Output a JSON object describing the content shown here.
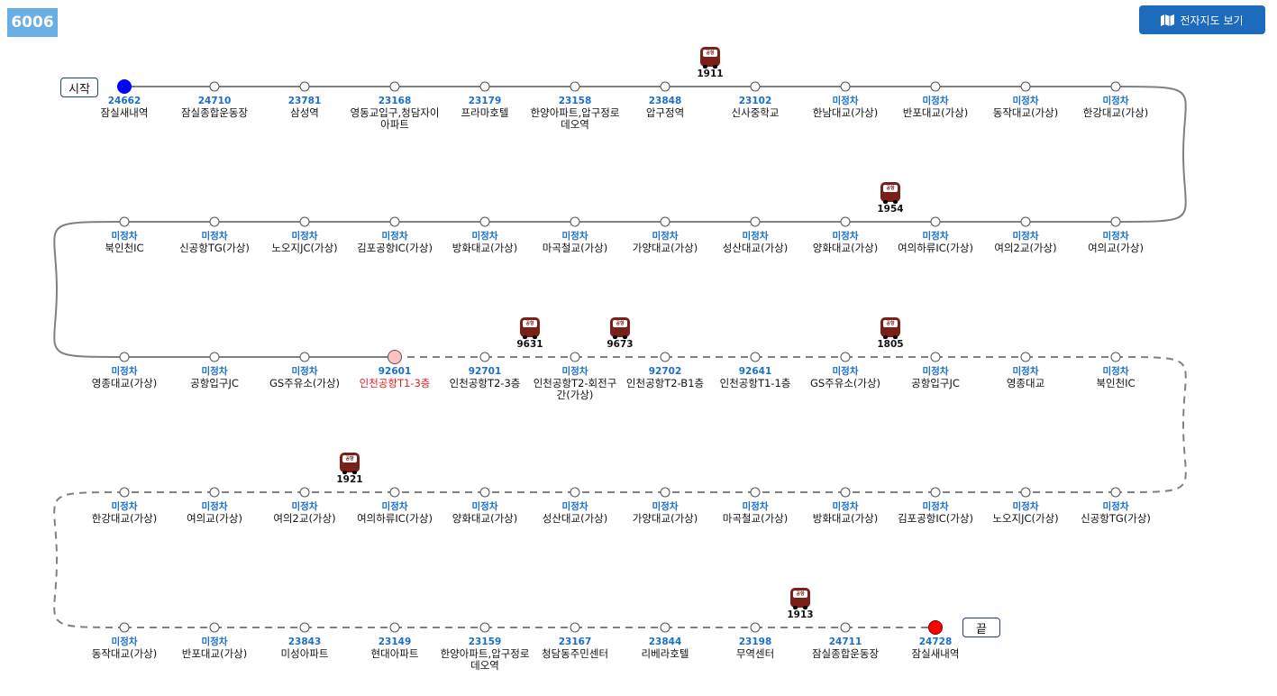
{
  "route": {
    "number": "6006"
  },
  "map_button": {
    "label": "전자지도 보기",
    "icon": "map-icon"
  },
  "terminals": {
    "start": "시작",
    "end": "끝"
  },
  "stops": [
    {
      "code": "24662",
      "name": "잠실새내역",
      "state": "start"
    },
    {
      "code": "24710",
      "name": "잠실종합운동장"
    },
    {
      "code": "23781",
      "name": "삼성역"
    },
    {
      "code": "23168",
      "name": "영동교입구,청담자이아파트"
    },
    {
      "code": "23179",
      "name": "프라마호텔"
    },
    {
      "code": "23158",
      "name": "한양아파트,압구정로데오역"
    },
    {
      "code": "23848",
      "name": "압구정역"
    },
    {
      "code": "23102",
      "name": "신사중학교"
    },
    {
      "code": "미정차",
      "name": "한남대교(가상)"
    },
    {
      "code": "미정차",
      "name": "반포대교(가상)"
    },
    {
      "code": "미정차",
      "name": "동작대교(가상)"
    },
    {
      "code": "미정차",
      "name": "한강대교(가상)"
    },
    {
      "code": "미정차",
      "name": "여의교(가상)"
    },
    {
      "code": "미정차",
      "name": "여의2교(가상)"
    },
    {
      "code": "미정차",
      "name": "여의하류IC(가상)"
    },
    {
      "code": "미정차",
      "name": "양화대교(가상)"
    },
    {
      "code": "미정차",
      "name": "성산대교(가상)"
    },
    {
      "code": "미정차",
      "name": "가양대교(가상)"
    },
    {
      "code": "미정차",
      "name": "마곡철교(가상)"
    },
    {
      "code": "미정차",
      "name": "방화대교(가상)"
    },
    {
      "code": "미정차",
      "name": "김포공항IC(가상)"
    },
    {
      "code": "미정차",
      "name": "노오지JC(가상)"
    },
    {
      "code": "미정차",
      "name": "신공항TG(가상)"
    },
    {
      "code": "미정차",
      "name": "북인천IC"
    },
    {
      "code": "미정차",
      "name": "영종대교(가상)"
    },
    {
      "code": "미정차",
      "name": "공항입구JC"
    },
    {
      "code": "미정차",
      "name": "GS주유소(가상)"
    },
    {
      "code": "92601",
      "name": "인천공항T1-3층",
      "state": "turn"
    },
    {
      "code": "92701",
      "name": "인천공항T2-3층"
    },
    {
      "code": "미정차",
      "name": "인천공항T2-회전구간(가상)"
    },
    {
      "code": "92702",
      "name": "인천공항T2-B1층"
    },
    {
      "code": "92641",
      "name": "인천공항T1-1층"
    },
    {
      "code": "미정차",
      "name": "GS주유소(가상)"
    },
    {
      "code": "미정차",
      "name": "공항입구JC"
    },
    {
      "code": "미정차",
      "name": "영종대교"
    },
    {
      "code": "미정차",
      "name": "북인천IC"
    },
    {
      "code": "미정차",
      "name": "신공항TG(가상)"
    },
    {
      "code": "미정차",
      "name": "노오지JC(가상)"
    },
    {
      "code": "미정차",
      "name": "김포공항IC(가상)"
    },
    {
      "code": "미정차",
      "name": "방화대교(가상)"
    },
    {
      "code": "미정차",
      "name": "마곡철교(가상)"
    },
    {
      "code": "미정차",
      "name": "가양대교(가상)"
    },
    {
      "code": "미정차",
      "name": "성산대교(가상)"
    },
    {
      "code": "미정차",
      "name": "양화대교(가상)"
    },
    {
      "code": "미정차",
      "name": "여의하류IC(가상)"
    },
    {
      "code": "미정차",
      "name": "여의2교(가상)"
    },
    {
      "code": "미정차",
      "name": "여의교(가상)"
    },
    {
      "code": "미정차",
      "name": "한강대교(가상)"
    },
    {
      "code": "미정차",
      "name": "동작대교(가상)"
    },
    {
      "code": "미정차",
      "name": "반포대교(가상)"
    },
    {
      "code": "23843",
      "name": "미성아파트"
    },
    {
      "code": "23149",
      "name": "현대아파트"
    },
    {
      "code": "23159",
      "name": "한양아파트,압구정로데오역"
    },
    {
      "code": "23167",
      "name": "청담동주민센터"
    },
    {
      "code": "23844",
      "name": "리베라호텔"
    },
    {
      "code": "23198",
      "name": "무역센터"
    },
    {
      "code": "24711",
      "name": "잠실종합운동장"
    },
    {
      "code": "24728",
      "name": "잠실새내역",
      "state": "end"
    }
  ],
  "buses": [
    {
      "number": "1911",
      "after_stop": 6,
      "type": "공항"
    },
    {
      "number": "1954",
      "after_stop": 14,
      "type": "공항"
    },
    {
      "number": "9631",
      "after_stop": 28,
      "type": "공항"
    },
    {
      "number": "9673",
      "after_stop": 29,
      "type": "공항"
    },
    {
      "number": "1805",
      "after_stop": 32,
      "type": "공항"
    },
    {
      "number": "1921",
      "after_stop": 44,
      "type": "공항"
    },
    {
      "number": "1913",
      "after_stop": 55,
      "type": "공항"
    }
  ],
  "colors": {
    "line": "#808080",
    "start": "#0000ff",
    "end": "#ff0000",
    "turn": "#ffc0c0",
    "code": "#1a6fc9",
    "bus": "#7a2018"
  }
}
